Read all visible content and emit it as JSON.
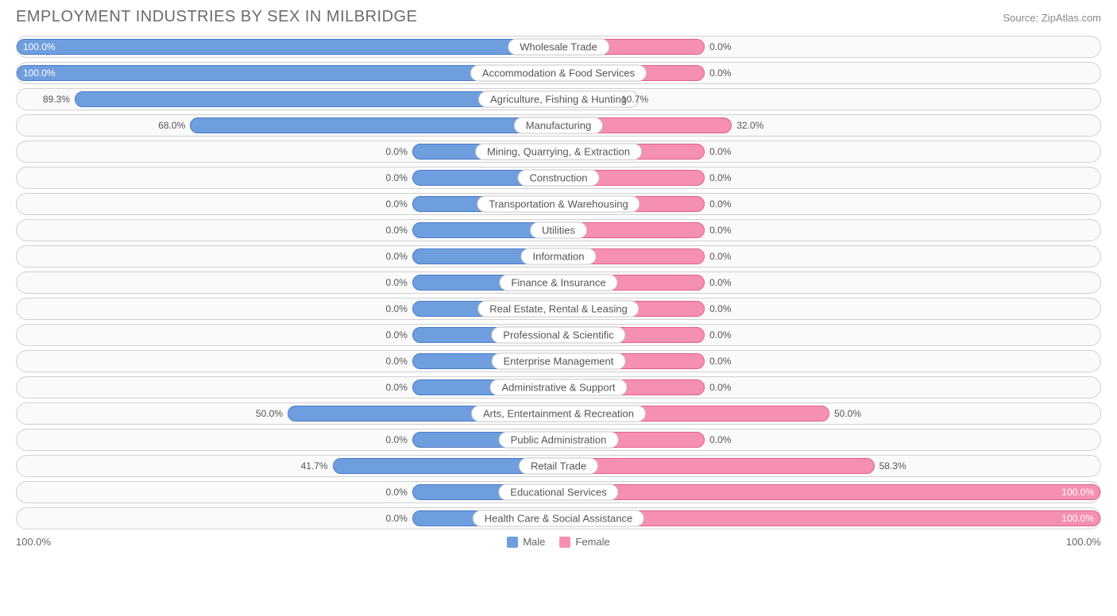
{
  "title": "EMPLOYMENT INDUSTRIES BY SEX IN MILBRIDGE",
  "source": "Source: ZipAtlas.com",
  "colors": {
    "male_fill": "#6f9ede",
    "male_border": "#4a7bc8",
    "female_fill": "#f590b2",
    "female_border": "#e65f8e",
    "track_bg": "#fafafa",
    "track_border": "#d0d0d0",
    "text": "#555555",
    "pct_inside": "#ffffff",
    "pct_outside": "#555555"
  },
  "chart": {
    "type": "diverging-bar",
    "default_bar_half_pct": 13.5,
    "rows": [
      {
        "label": "Wholesale Trade",
        "male": 100.0,
        "female": 0.0,
        "male_label": "100.0%",
        "female_label": "0.0%"
      },
      {
        "label": "Accommodation & Food Services",
        "male": 100.0,
        "female": 0.0,
        "male_label": "100.0%",
        "female_label": "0.0%"
      },
      {
        "label": "Agriculture, Fishing & Hunting",
        "male": 89.3,
        "female": 10.7,
        "male_label": "89.3%",
        "female_label": "10.7%"
      },
      {
        "label": "Manufacturing",
        "male": 68.0,
        "female": 32.0,
        "male_label": "68.0%",
        "female_label": "32.0%"
      },
      {
        "label": "Mining, Quarrying, & Extraction",
        "male": 0.0,
        "female": 0.0,
        "male_label": "0.0%",
        "female_label": "0.0%"
      },
      {
        "label": "Construction",
        "male": 0.0,
        "female": 0.0,
        "male_label": "0.0%",
        "female_label": "0.0%"
      },
      {
        "label": "Transportation & Warehousing",
        "male": 0.0,
        "female": 0.0,
        "male_label": "0.0%",
        "female_label": "0.0%"
      },
      {
        "label": "Utilities",
        "male": 0.0,
        "female": 0.0,
        "male_label": "0.0%",
        "female_label": "0.0%"
      },
      {
        "label": "Information",
        "male": 0.0,
        "female": 0.0,
        "male_label": "0.0%",
        "female_label": "0.0%"
      },
      {
        "label": "Finance & Insurance",
        "male": 0.0,
        "female": 0.0,
        "male_label": "0.0%",
        "female_label": "0.0%"
      },
      {
        "label": "Real Estate, Rental & Leasing",
        "male": 0.0,
        "female": 0.0,
        "male_label": "0.0%",
        "female_label": "0.0%"
      },
      {
        "label": "Professional & Scientific",
        "male": 0.0,
        "female": 0.0,
        "male_label": "0.0%",
        "female_label": "0.0%"
      },
      {
        "label": "Enterprise Management",
        "male": 0.0,
        "female": 0.0,
        "male_label": "0.0%",
        "female_label": "0.0%"
      },
      {
        "label": "Administrative & Support",
        "male": 0.0,
        "female": 0.0,
        "male_label": "0.0%",
        "female_label": "0.0%"
      },
      {
        "label": "Arts, Entertainment & Recreation",
        "male": 50.0,
        "female": 50.0,
        "male_label": "50.0%",
        "female_label": "50.0%"
      },
      {
        "label": "Public Administration",
        "male": 0.0,
        "female": 0.0,
        "male_label": "0.0%",
        "female_label": "0.0%"
      },
      {
        "label": "Retail Trade",
        "male": 41.7,
        "female": 58.3,
        "male_label": "41.7%",
        "female_label": "58.3%"
      },
      {
        "label": "Educational Services",
        "male": 0.0,
        "female": 100.0,
        "male_label": "0.0%",
        "female_label": "100.0%"
      },
      {
        "label": "Health Care & Social Assistance",
        "male": 0.0,
        "female": 100.0,
        "male_label": "0.0%",
        "female_label": "100.0%"
      }
    ]
  },
  "footer": {
    "left_axis": "100.0%",
    "right_axis": "100.0%",
    "legend": [
      {
        "label": "Male",
        "color": "#6f9ede"
      },
      {
        "label": "Female",
        "color": "#f590b2"
      }
    ]
  }
}
